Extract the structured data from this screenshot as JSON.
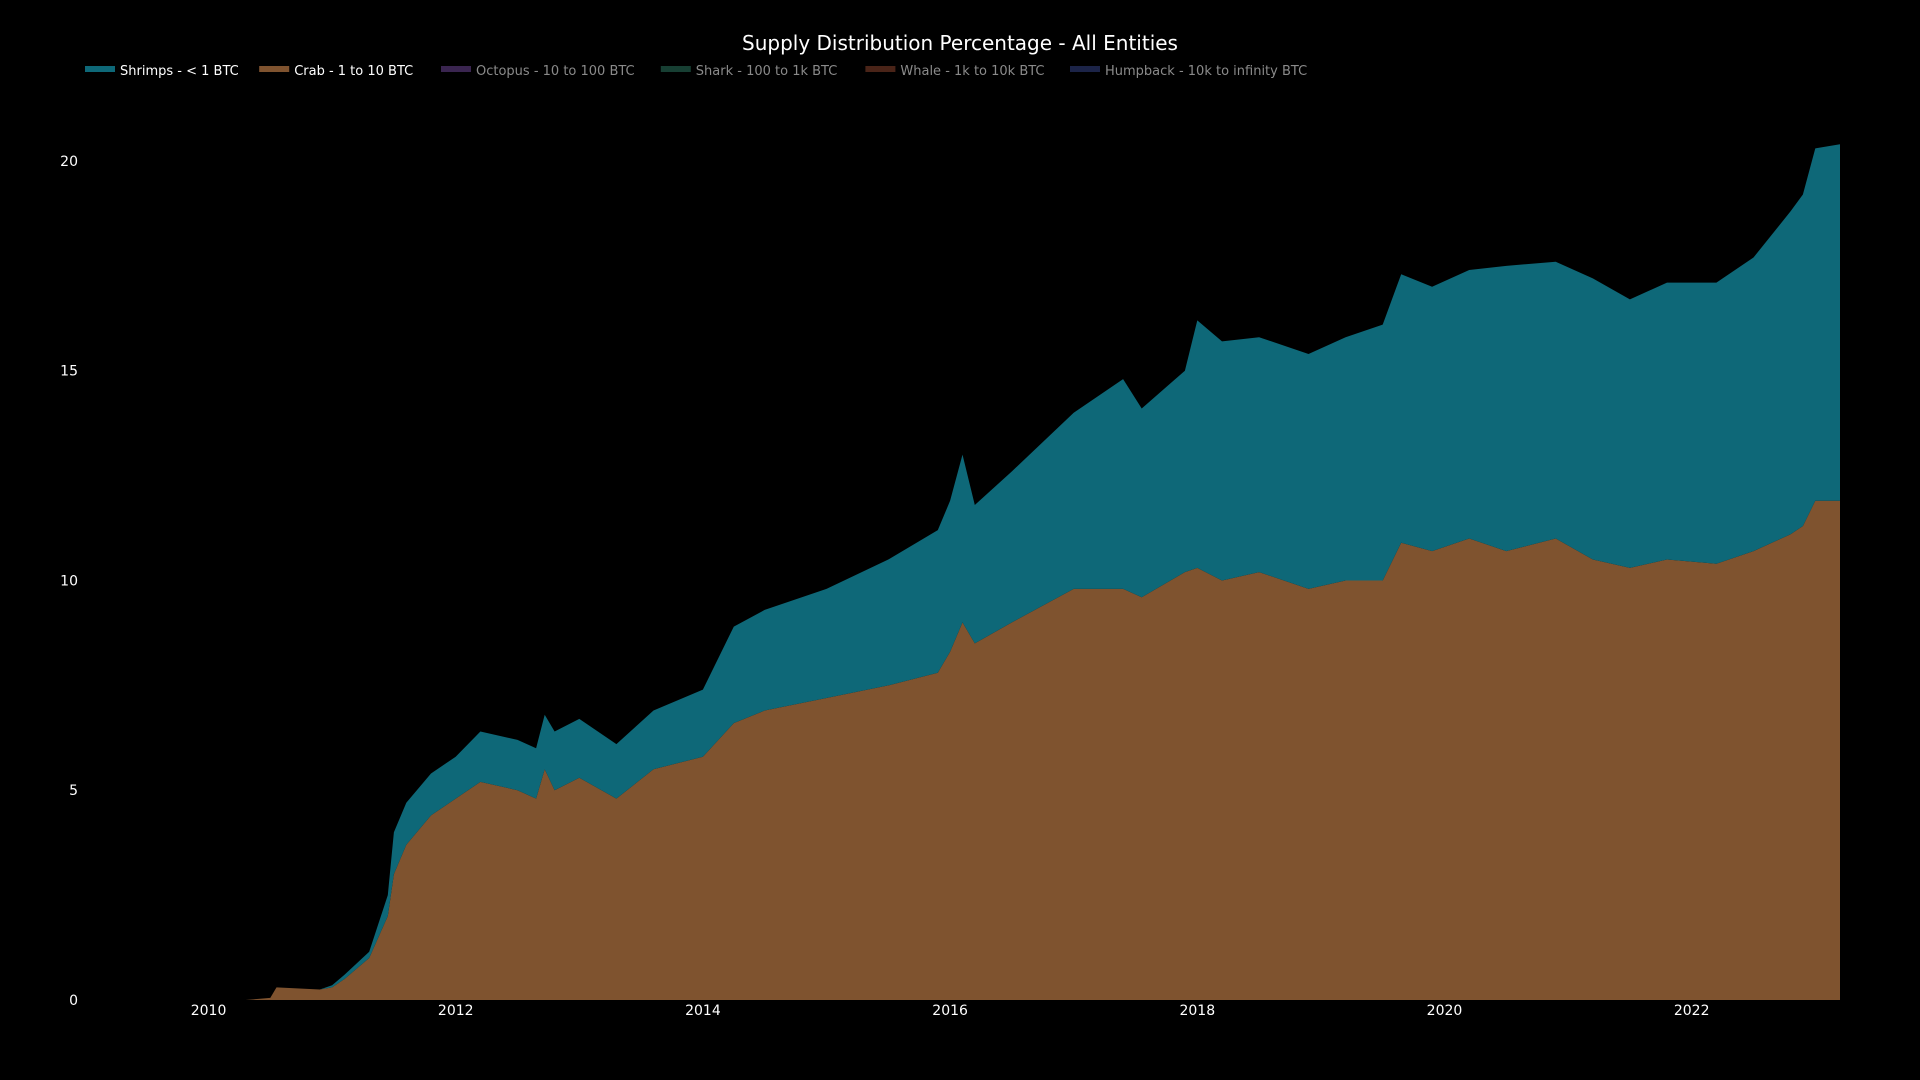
{
  "chart_data": {
    "type": "area",
    "stacked": true,
    "title": "Supply Distribution Percentage - All Entities",
    "xlabel": "",
    "ylabel": "",
    "xlim": [
      2009.9,
      2023.2
    ],
    "ylim": [
      0,
      20.5
    ],
    "x_ticks": [
      {
        "value": 2010,
        "label": "2010"
      },
      {
        "value": 2012,
        "label": "2012"
      },
      {
        "value": 2014,
        "label": "2014"
      },
      {
        "value": 2016,
        "label": "2016"
      },
      {
        "value": 2018,
        "label": "2018"
      },
      {
        "value": 2020,
        "label": "2020"
      },
      {
        "value": 2022,
        "label": "2022"
      }
    ],
    "y_ticks": [
      {
        "value": 0,
        "label": "0"
      },
      {
        "value": 5,
        "label": "5"
      },
      {
        "value": 10,
        "label": "10"
      },
      {
        "value": 15,
        "label": "15"
      },
      {
        "value": 20,
        "label": "20"
      }
    ],
    "legend_position": "top-left",
    "legend": [
      {
        "name": "Shrimps - < 1 BTC",
        "color": "#0e6878",
        "visible": true
      },
      {
        "name": "Crab - 1 to 10 BTC",
        "color": "#7f532f",
        "visible": true
      },
      {
        "name": "Octopus - 10 to 100 BTC",
        "color": "#3a2550",
        "visible": false
      },
      {
        "name": "Shark - 100 to 1k BTC",
        "color": "#173f33",
        "visible": false
      },
      {
        "name": "Whale - 1k to 10k BTC",
        "color": "#4a2418",
        "visible": false
      },
      {
        "name": "Humpback - 10k to infinity BTC",
        "color": "#1c2448",
        "visible": false
      }
    ],
    "x": [
      2010.3,
      2010.5,
      2010.55,
      2010.9,
      2011.0,
      2011.1,
      2011.3,
      2011.45,
      2011.5,
      2011.6,
      2011.8,
      2012.0,
      2012.2,
      2012.5,
      2012.65,
      2012.72,
      2012.8,
      2013.0,
      2013.3,
      2013.6,
      2014.0,
      2014.25,
      2014.5,
      2015.0,
      2015.5,
      2015.9,
      2016.0,
      2016.1,
      2016.2,
      2016.5,
      2017.0,
      2017.4,
      2017.55,
      2017.9,
      2018.0,
      2018.2,
      2018.5,
      2018.9,
      2019.2,
      2019.5,
      2019.65,
      2019.9,
      2020.2,
      2020.5,
      2020.9,
      2021.2,
      2021.5,
      2021.8,
      2022.2,
      2022.5,
      2022.8,
      2022.9,
      2023.0,
      2023.2
    ],
    "series": [
      {
        "name": "Crab - 1 to 10 BTC",
        "values": [
          0.0,
          0.05,
          0.3,
          0.25,
          0.3,
          0.5,
          1.0,
          2.0,
          3.0,
          3.7,
          4.4,
          4.8,
          5.2,
          5.0,
          4.8,
          5.5,
          5.0,
          5.3,
          4.8,
          5.5,
          5.8,
          6.6,
          6.9,
          7.2,
          7.5,
          7.8,
          8.3,
          9.0,
          8.5,
          9.0,
          9.8,
          9.8,
          9.6,
          10.2,
          10.3,
          10.0,
          10.2,
          9.8,
          10.0,
          10.0,
          10.9,
          10.7,
          11.0,
          10.7,
          11.0,
          10.5,
          10.3,
          10.5,
          10.4,
          10.7,
          11.1,
          11.3,
          11.9,
          11.9
        ]
      },
      {
        "name": "Shrimps - < 1 BTC",
        "values": [
          0.0,
          0.0,
          0.0,
          0.0,
          0.05,
          0.1,
          0.15,
          0.5,
          1.0,
          1.0,
          1.0,
          1.0,
          1.2,
          1.2,
          1.2,
          1.3,
          1.4,
          1.4,
          1.3,
          1.4,
          1.6,
          2.3,
          2.4,
          2.6,
          3.0,
          3.4,
          3.6,
          4.0,
          3.3,
          3.6,
          4.2,
          5.0,
          4.5,
          4.8,
          5.9,
          5.7,
          5.6,
          5.6,
          5.8,
          6.1,
          6.4,
          6.3,
          6.4,
          6.8,
          6.6,
          6.7,
          6.4,
          6.6,
          6.7,
          7.0,
          7.7,
          7.9,
          8.4,
          8.5
        ]
      }
    ]
  }
}
